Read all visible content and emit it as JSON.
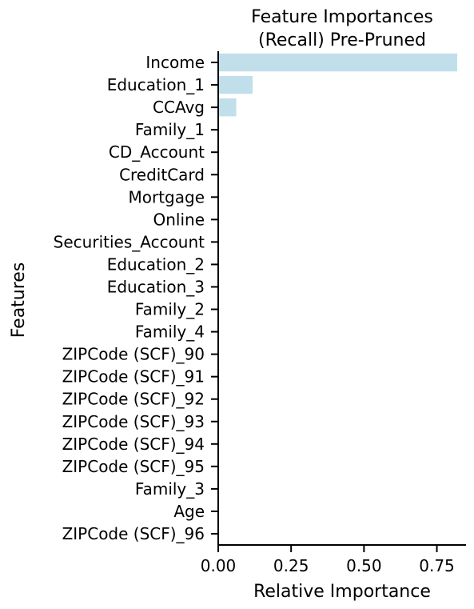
{
  "chart_data": {
    "type": "bar",
    "orientation": "horizontal",
    "title": [
      "Feature Importances",
      "(Recall) Pre-Pruned"
    ],
    "xlabel": "Relative Importance",
    "ylabel": "Features",
    "xlim": [
      0,
      0.85
    ],
    "xticks": [
      0.0,
      0.25,
      0.5,
      0.75
    ],
    "xtick_labels": [
      "0.00",
      "0.25",
      "0.50",
      "0.75"
    ],
    "bar_color": "#c1dfeb",
    "grid": false,
    "categories": [
      "Income",
      "Education_1",
      "CCAvg",
      "Family_1",
      "CD_Account",
      "CreditCard",
      "Mortgage",
      "Online",
      "Securities_Account",
      "Education_2",
      "Education_3",
      "Family_2",
      "Family_4",
      "ZIPCode (SCF)_90",
      "ZIPCode (SCF)_91",
      "ZIPCode (SCF)_92",
      "ZIPCode (SCF)_93",
      "ZIPCode (SCF)_94",
      "ZIPCode (SCF)_95",
      "Family_3",
      "Age",
      "ZIPCode (SCF)_96"
    ],
    "values": [
      0.82,
      0.118,
      0.062,
      0,
      0,
      0,
      0,
      0,
      0,
      0,
      0,
      0,
      0,
      0,
      0,
      0,
      0,
      0,
      0,
      0,
      0,
      0
    ]
  }
}
